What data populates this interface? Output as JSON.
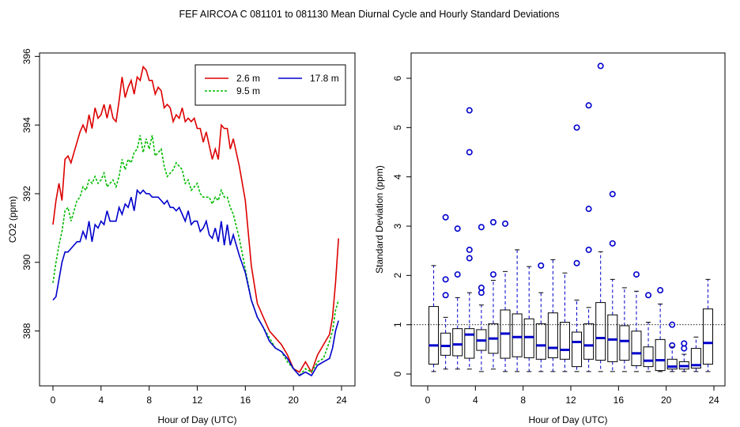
{
  "page_title": "FEF   AIRCOA C   081101 to 081130   Mean Diurnal Cycle and Hourly Standard Deviations",
  "chart_data": [
    {
      "type": "line",
      "xlabel": "Hour of Day (UTC)",
      "ylabel": "CO2 (ppm)",
      "xlim": [
        0,
        24
      ],
      "ylim": [
        386.4,
        396.1
      ],
      "xticks": [
        0,
        4,
        8,
        12,
        16,
        20,
        24
      ],
      "yticks": [
        388,
        390,
        392,
        394,
        396
      ],
      "legend": {
        "position": "top-right",
        "entries": [
          "2.6 m",
          "9.5 m",
          "17.8 m"
        ]
      },
      "series": [
        {
          "name": "2.6 m",
          "color": "#dd0000",
          "dash": "",
          "x": [
            0,
            0.25,
            0.5,
            0.75,
            1,
            1.25,
            1.5,
            2,
            2.25,
            2.5,
            2.75,
            3,
            3.25,
            3.5,
            3.75,
            4,
            4.25,
            4.5,
            4.75,
            5,
            5.25,
            5.5,
            5.75,
            6,
            6.25,
            6.5,
            6.75,
            7,
            7.25,
            7.5,
            7.75,
            8,
            8.25,
            8.5,
            8.75,
            9,
            9.25,
            9.5,
            9.75,
            10,
            10.25,
            10.5,
            10.75,
            11,
            11.25,
            11.5,
            11.75,
            12,
            12.25,
            12.5,
            12.75,
            13,
            13.25,
            13.5,
            13.75,
            14,
            14.25,
            14.5,
            14.75,
            15,
            15.5,
            16,
            16.5,
            17,
            17.5,
            18,
            18.5,
            19,
            19.5,
            20,
            20.5,
            21,
            21.5,
            22,
            22.5,
            23,
            23.25,
            23.5,
            23.75
          ],
          "y": [
            391.1,
            391.8,
            392.3,
            391.8,
            393.0,
            393.1,
            392.9,
            393.5,
            393.8,
            394.0,
            393.8,
            394.3,
            393.9,
            394.5,
            394.2,
            394.3,
            394.6,
            394.2,
            394.6,
            394.2,
            394.1,
            394.7,
            395.4,
            394.8,
            395.1,
            395.3,
            394.9,
            395.4,
            395.3,
            395.7,
            395.6,
            395.3,
            395.3,
            394.9,
            395.1,
            395.0,
            394.5,
            394.6,
            394.5,
            394.1,
            394.3,
            394.2,
            394.5,
            394.1,
            394.2,
            394.1,
            394.2,
            393.9,
            393.9,
            393.5,
            393.8,
            393.4,
            393.0,
            393.3,
            393.0,
            394.0,
            393.9,
            393.9,
            393.3,
            393.6,
            392.8,
            391.8,
            389.9,
            388.8,
            388.4,
            388.0,
            387.8,
            387.6,
            387.3,
            386.9,
            386.8,
            387.1,
            386.8,
            387.3,
            387.6,
            387.9,
            388.4,
            389.4,
            390.7
          ]
        },
        {
          "name": "9.5 m",
          "color": "#00bb00",
          "dash": "3,2",
          "x": [
            0,
            0.25,
            0.5,
            0.75,
            1,
            1.25,
            1.5,
            2,
            2.25,
            2.5,
            2.75,
            3,
            3.25,
            3.5,
            3.75,
            4,
            4.25,
            4.5,
            4.75,
            5,
            5.25,
            5.5,
            5.75,
            6,
            6.25,
            6.5,
            6.75,
            7,
            7.25,
            7.5,
            7.75,
            8,
            8.25,
            8.5,
            8.75,
            9,
            9.25,
            9.5,
            9.75,
            10,
            10.25,
            10.5,
            10.75,
            11,
            11.25,
            11.5,
            11.75,
            12,
            12.25,
            12.5,
            12.75,
            13,
            13.25,
            13.5,
            13.75,
            14,
            14.25,
            14.5,
            14.75,
            15,
            15.5,
            16,
            16.5,
            17,
            17.5,
            18,
            18.5,
            19,
            19.5,
            20,
            20.5,
            21,
            21.5,
            22,
            22.5,
            23,
            23.25,
            23.5,
            23.75
          ],
          "y": [
            389.4,
            390.0,
            390.5,
            390.9,
            391.5,
            391.6,
            391.2,
            391.8,
            391.9,
            392.2,
            392.1,
            392.4,
            392.3,
            392.5,
            392.3,
            392.4,
            392.6,
            392.2,
            392.3,
            392.4,
            392.2,
            392.5,
            393.0,
            392.7,
            393.0,
            392.9,
            393.2,
            393.3,
            393.7,
            393.2,
            393.6,
            393.3,
            393.7,
            393.1,
            393.2,
            393.3,
            392.8,
            392.5,
            392.6,
            392.7,
            392.9,
            392.8,
            392.7,
            392.3,
            392.4,
            392.1,
            392.2,
            392.3,
            392.0,
            391.9,
            391.9,
            391.9,
            391.7,
            391.9,
            391.8,
            392.1,
            391.9,
            391.9,
            391.6,
            391.4,
            390.7,
            389.8,
            388.9,
            388.4,
            388.1,
            387.8,
            387.5,
            387.4,
            387.1,
            386.9,
            386.7,
            386.9,
            386.8,
            387.1,
            387.2,
            387.7,
            388.0,
            388.6,
            388.9
          ]
        },
        {
          "name": "17.8 m",
          "color": "#0000cc",
          "dash": "",
          "x": [
            0,
            0.25,
            0.5,
            0.75,
            1,
            1.25,
            1.5,
            2,
            2.25,
            2.5,
            2.75,
            3,
            3.25,
            3.5,
            3.75,
            4,
            4.25,
            4.5,
            4.75,
            5,
            5.25,
            5.5,
            5.75,
            6,
            6.25,
            6.5,
            6.75,
            7,
            7.25,
            7.5,
            7.75,
            8,
            8.25,
            8.5,
            8.75,
            9,
            9.25,
            9.5,
            9.75,
            10,
            10.25,
            10.5,
            10.75,
            11,
            11.25,
            11.5,
            11.75,
            12,
            12.25,
            12.5,
            12.75,
            13,
            13.25,
            13.5,
            13.75,
            14,
            14.25,
            14.5,
            14.75,
            15,
            15.5,
            16,
            16.5,
            17,
            17.5,
            18,
            18.5,
            19,
            19.5,
            20,
            20.5,
            21,
            21.5,
            22,
            22.5,
            23,
            23.25,
            23.5,
            23.75
          ],
          "y": [
            388.9,
            389.0,
            389.5,
            390.0,
            390.3,
            390.3,
            390.4,
            390.6,
            390.6,
            390.9,
            390.7,
            391.2,
            390.6,
            391.1,
            391.0,
            391.2,
            391.1,
            391.5,
            391.2,
            391.2,
            391.2,
            391.6,
            391.4,
            391.7,
            391.6,
            391.9,
            391.5,
            392.1,
            392.0,
            392.1,
            392.0,
            392.0,
            391.9,
            391.9,
            391.9,
            391.8,
            391.7,
            391.8,
            391.6,
            391.6,
            391.5,
            391.6,
            391.4,
            391.2,
            391.5,
            391.1,
            391.2,
            391.2,
            390.9,
            391.0,
            391.2,
            390.8,
            390.7,
            391.0,
            390.6,
            391.2,
            390.5,
            391.1,
            390.5,
            390.8,
            390.2,
            389.7,
            388.9,
            388.4,
            388.1,
            387.7,
            387.5,
            387.4,
            387.2,
            386.9,
            386.7,
            386.8,
            386.7,
            387.0,
            387.1,
            387.2,
            387.5,
            388.0,
            388.3
          ]
        }
      ]
    },
    {
      "type": "box",
      "xlabel": "Hour of Day (UTC)",
      "ylabel": "Standard Deviation (ppm)",
      "xlim": [
        -0.8,
        24.8
      ],
      "ylim": [
        -0.25,
        6.5
      ],
      "xticks": [
        0,
        4,
        8,
        12,
        16,
        20,
        24
      ],
      "yticks": [
        0,
        1,
        2,
        3,
        4,
        5,
        6
      ],
      "reference_line": 1.0,
      "boxes": [
        {
          "hour": 0,
          "lw": 0.05,
          "q1": 0.2,
          "med": 0.58,
          "q3": 1.37,
          "uw": 2.2,
          "outliers": []
        },
        {
          "hour": 1,
          "lw": 0.1,
          "q1": 0.38,
          "med": 0.57,
          "q3": 0.83,
          "uw": 1.15,
          "outliers": [
            1.6,
            1.92,
            3.18
          ]
        },
        {
          "hour": 2,
          "lw": 0.1,
          "q1": 0.37,
          "med": 0.6,
          "q3": 0.92,
          "uw": 1.55,
          "outliers": [
            2.02,
            2.95
          ]
        },
        {
          "hour": 3,
          "lw": 0.1,
          "q1": 0.32,
          "med": 0.8,
          "q3": 0.92,
          "uw": 1.65,
          "outliers": [
            2.35,
            2.52,
            4.5,
            5.35
          ]
        },
        {
          "hour": 4,
          "lw": 0.05,
          "q1": 0.48,
          "med": 0.68,
          "q3": 0.9,
          "uw": 1.4,
          "outliers": [
            1.65,
            1.75,
            2.98
          ]
        },
        {
          "hour": 5,
          "lw": 0.1,
          "q1": 0.42,
          "med": 0.72,
          "q3": 1.02,
          "uw": 1.9,
          "outliers": [
            2.02,
            3.08
          ]
        },
        {
          "hour": 6,
          "lw": 0.05,
          "q1": 0.32,
          "med": 0.82,
          "q3": 1.3,
          "uw": 2.08,
          "outliers": [
            3.05
          ]
        },
        {
          "hour": 7,
          "lw": 0.05,
          "q1": 0.35,
          "med": 0.75,
          "q3": 1.22,
          "uw": 2.52,
          "outliers": []
        },
        {
          "hour": 8,
          "lw": 0.05,
          "q1": 0.33,
          "med": 0.75,
          "q3": 1.12,
          "uw": 2.18,
          "outliers": []
        },
        {
          "hour": 9,
          "lw": 0.05,
          "q1": 0.3,
          "med": 0.58,
          "q3": 1.02,
          "uw": 1.65,
          "outliers": [
            2.2
          ]
        },
        {
          "hour": 10,
          "lw": 0.05,
          "q1": 0.33,
          "med": 0.53,
          "q3": 1.24,
          "uw": 2.32,
          "outliers": []
        },
        {
          "hour": 11,
          "lw": 0.05,
          "q1": 0.3,
          "med": 0.49,
          "q3": 1.05,
          "uw": 2.05,
          "outliers": []
        },
        {
          "hour": 12,
          "lw": 0.05,
          "q1": 0.15,
          "med": 0.65,
          "q3": 0.85,
          "uw": 1.5,
          "outliers": [
            2.25,
            5.0
          ]
        },
        {
          "hour": 13,
          "lw": 0.05,
          "q1": 0.3,
          "med": 0.58,
          "q3": 1.02,
          "uw": 1.35,
          "outliers": [
            2.52,
            3.35,
            5.45
          ]
        },
        {
          "hour": 14,
          "lw": 0.05,
          "q1": 0.28,
          "med": 0.73,
          "q3": 1.45,
          "uw": 2.48,
          "outliers": [
            6.25
          ]
        },
        {
          "hour": 15,
          "lw": 0.05,
          "q1": 0.25,
          "med": 0.7,
          "q3": 1.2,
          "uw": 1.92,
          "outliers": [
            2.65,
            3.65
          ]
        },
        {
          "hour": 16,
          "lw": 0.05,
          "q1": 0.28,
          "med": 0.67,
          "q3": 0.98,
          "uw": 1.75,
          "outliers": []
        },
        {
          "hour": 17,
          "lw": 0.05,
          "q1": 0.17,
          "med": 0.42,
          "q3": 0.87,
          "uw": 1.68,
          "outliers": [
            2.02
          ]
        },
        {
          "hour": 18,
          "lw": 0.05,
          "q1": 0.15,
          "med": 0.27,
          "q3": 0.55,
          "uw": 1.05,
          "outliers": [
            1.6
          ]
        },
        {
          "hour": 19,
          "lw": 0.05,
          "q1": 0.07,
          "med": 0.28,
          "q3": 0.7,
          "uw": 1.42,
          "outliers": [
            1.7
          ]
        },
        {
          "hour": 20,
          "lw": 0.05,
          "q1": 0.1,
          "med": 0.15,
          "q3": 0.3,
          "uw": 0.55,
          "outliers": [
            0.58,
            1.0
          ]
        },
        {
          "hour": 21,
          "lw": 0.05,
          "q1": 0.1,
          "med": 0.16,
          "q3": 0.25,
          "uw": 0.4,
          "outliers": [
            0.52,
            0.62
          ]
        },
        {
          "hour": 22,
          "lw": 0.05,
          "q1": 0.12,
          "med": 0.18,
          "q3": 0.52,
          "uw": 0.75,
          "outliers": []
        },
        {
          "hour": 23,
          "lw": 0.05,
          "q1": 0.2,
          "med": 0.63,
          "q3": 1.32,
          "uw": 1.92,
          "outliers": []
        }
      ]
    }
  ]
}
